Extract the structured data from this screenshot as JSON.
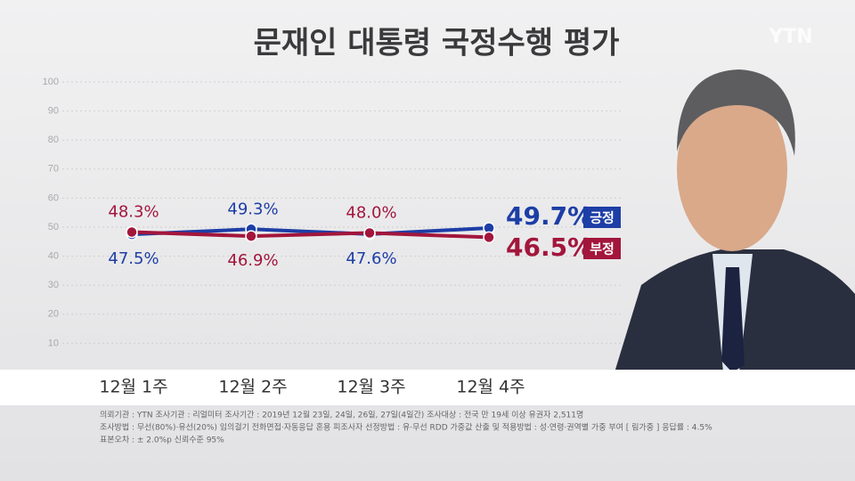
{
  "chart_data": {
    "type": "line",
    "title": "문재인 대통령 국정수행 평가",
    "logo": "YTN",
    "categories": [
      "12월 1주",
      "12월 2주",
      "12월 3주",
      "12월 4주"
    ],
    "series": [
      {
        "name": "긍정",
        "color": "#1d3ea6",
        "values": [
          47.5,
          49.3,
          47.6,
          49.7
        ],
        "value_labels": [
          "47.5%",
          "49.3%",
          "47.6%",
          "49.7%"
        ]
      },
      {
        "name": "부정",
        "color": "#a3163c",
        "values": [
          48.3,
          46.9,
          48.0,
          46.5
        ],
        "value_labels": [
          "48.3%",
          "46.9%",
          "48.0%",
          "46.5%"
        ]
      }
    ],
    "ylim": [
      0,
      100
    ],
    "yticks": [
      10,
      20,
      30,
      40,
      50,
      60,
      70,
      80,
      90,
      100
    ],
    "grid": true
  },
  "footer": {
    "lines": [
      "의뢰기관 : YTN    조사기관 : 리얼미터    조사기간 : 2019년 12월 23일, 24일, 26일, 27일(4일간)    조사대상 : 전국 만 19세 이상 유권자 2,511명",
      "조사방법 : 무선(80%)·유선(20%) 임의걸기 전화면접·자동응답 혼용    피조사자 선정방법 : 유·무선 RDD 가중값 산출 및 적용방법 : 성·연령·권역별 가중 부여 [ 림가중 ]    응답률 : 4.5%",
      "표본오차 : ± 2.0%p  신뢰수준 95%"
    ]
  }
}
